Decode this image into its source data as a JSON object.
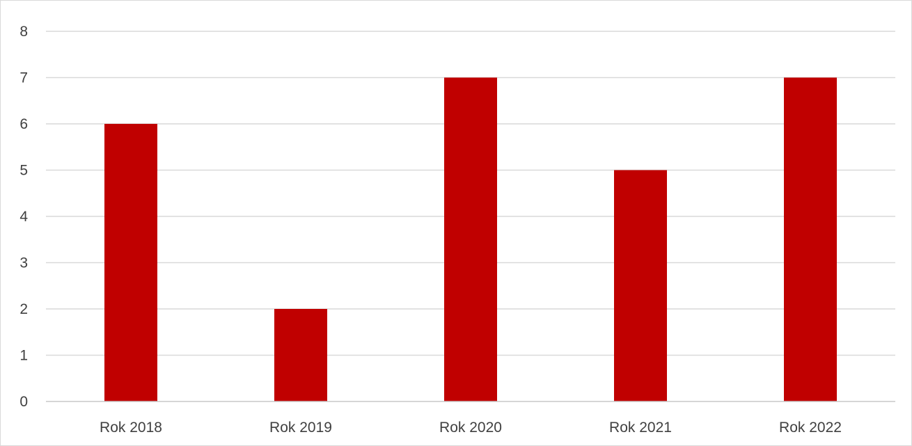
{
  "chart_data": {
    "type": "bar",
    "categories": [
      "Rok 2018",
      "Rok 2019",
      "Rok 2020",
      "Rok 2021",
      "Rok 2022"
    ],
    "values": [
      6,
      2,
      7,
      5,
      7
    ],
    "ylim": [
      0,
      8
    ],
    "yticks": [
      "0",
      "1",
      "2",
      "3",
      "4",
      "5",
      "6",
      "7",
      "8"
    ],
    "grid": true,
    "bar_color": "#c00000"
  }
}
